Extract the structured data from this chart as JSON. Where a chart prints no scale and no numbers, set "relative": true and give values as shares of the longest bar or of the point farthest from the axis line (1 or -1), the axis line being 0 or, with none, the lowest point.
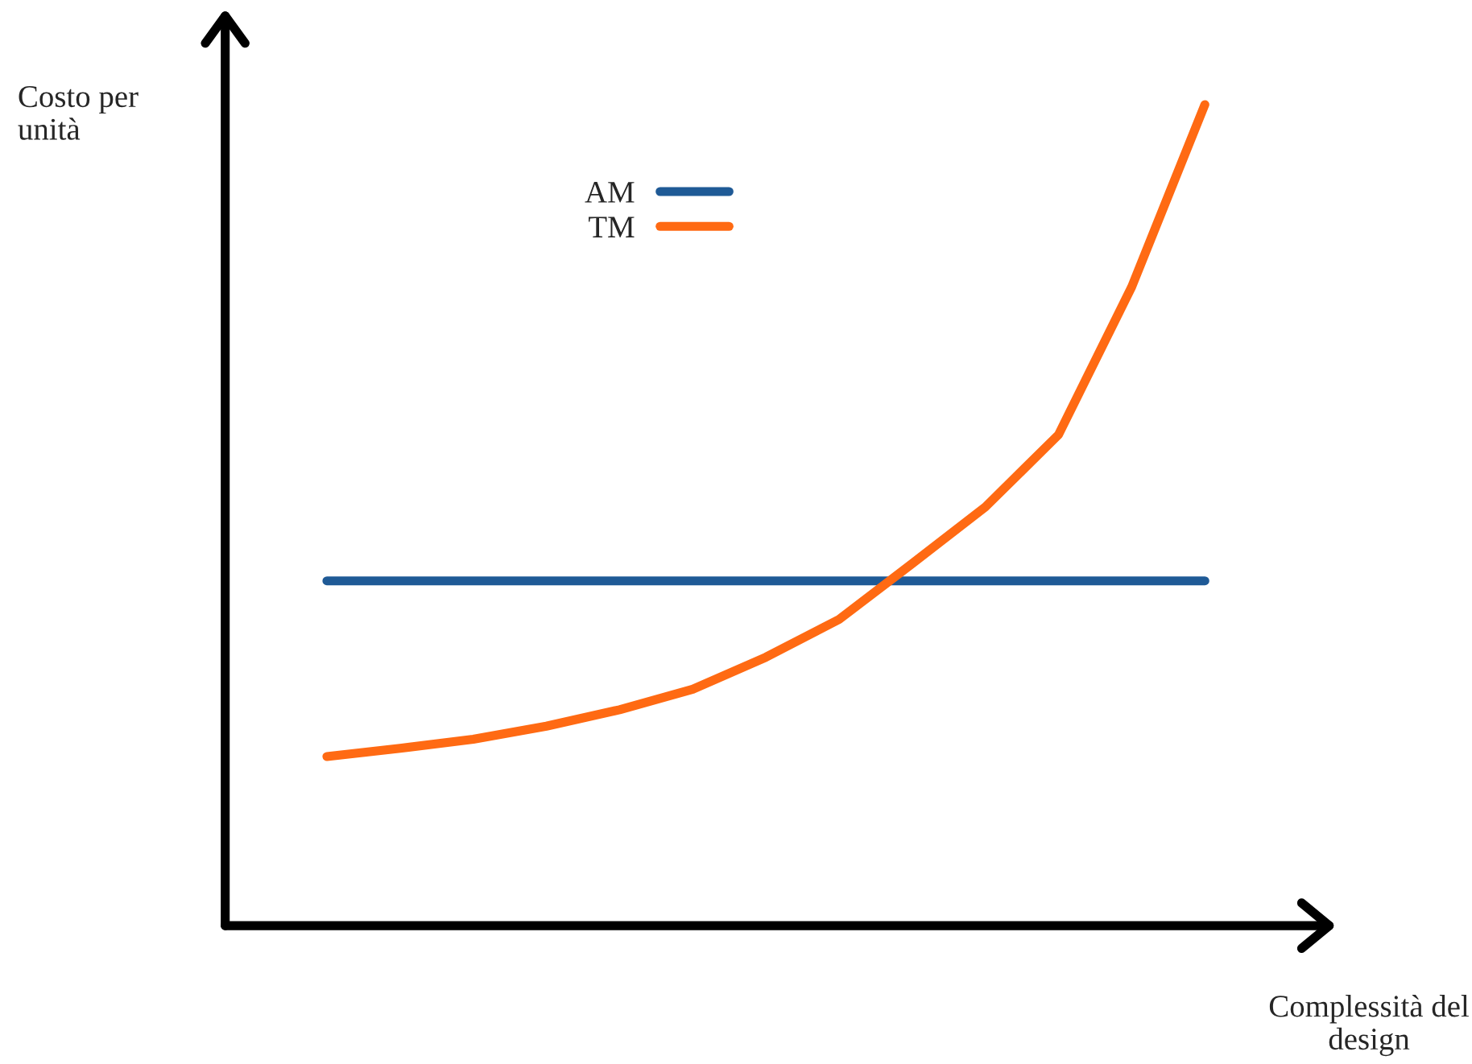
{
  "chart_data": {
    "type": "line",
    "relative": true,
    "xlabel": "Complessità del\ndesign",
    "ylabel": "Costo per\nunità",
    "legend": "top left",
    "grid": false,
    "marker": "none",
    "line_style": "solid",
    "categories": [
      null,
      null,
      null,
      null,
      null,
      null,
      null,
      null,
      null,
      null,
      null,
      null,
      null
    ],
    "series": [
      {
        "name": "AM",
        "color": "#1f5a96",
        "values": [
          0.42,
          0.42,
          0.42,
          0.42,
          0.42,
          0.42,
          0.42,
          0.42,
          0.42,
          0.42,
          0.42,
          0.42,
          0.42
        ]
      },
      {
        "name": "TM",
        "color": "#ff6a13",
        "values": [
          0.206,
          0.216,
          0.227,
          0.243,
          0.263,
          0.288,
          0.327,
          0.373,
          0.441,
          0.51,
          0.598,
          0.778,
          1.0
        ]
      }
    ]
  }
}
